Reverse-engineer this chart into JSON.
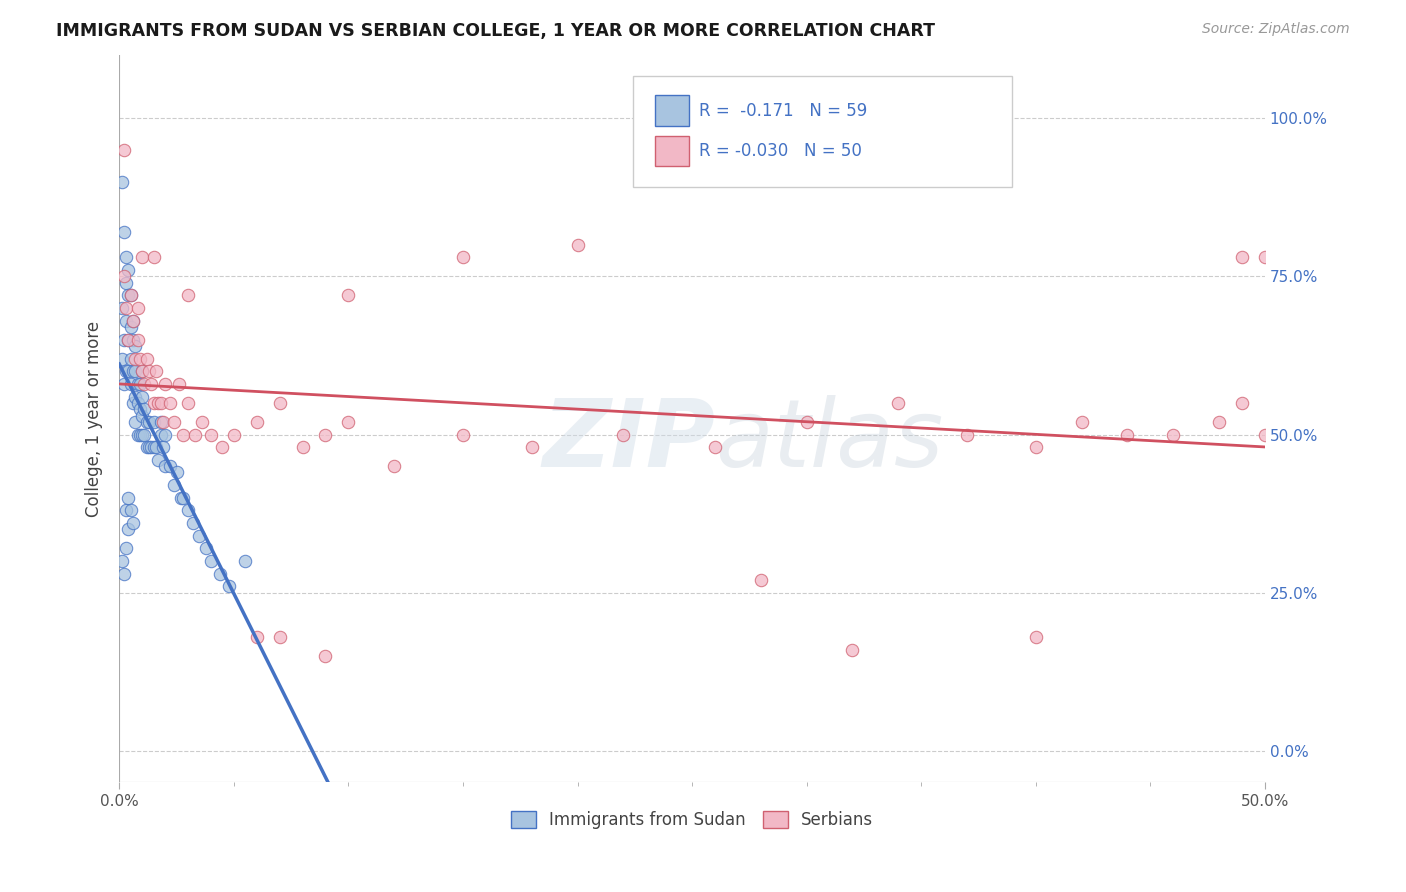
{
  "title": "IMMIGRANTS FROM SUDAN VS SERBIAN COLLEGE, 1 YEAR OR MORE CORRELATION CHART",
  "source": "Source: ZipAtlas.com",
  "ylabel": "College, 1 year or more",
  "xlim": [
    0.0,
    0.5
  ],
  "ylim": [
    -0.05,
    1.1
  ],
  "color_blue": "#a8c4e0",
  "color_pink": "#f2b8c6",
  "color_line_blue": "#4472c4",
  "color_line_pink": "#d05060",
  "color_text_blue": "#4472c4",
  "watermark": "ZIPatlas",
  "sudan_x": [
    0.001,
    0.001,
    0.002,
    0.002,
    0.003,
    0.003,
    0.003,
    0.004,
    0.004,
    0.004,
    0.005,
    0.005,
    0.005,
    0.006,
    0.006,
    0.006,
    0.007,
    0.007,
    0.007,
    0.007,
    0.008,
    0.008,
    0.008,
    0.009,
    0.009,
    0.009,
    0.01,
    0.01,
    0.01,
    0.01,
    0.011,
    0.011,
    0.012,
    0.012,
    0.013,
    0.013,
    0.014,
    0.015,
    0.015,
    0.016,
    0.017,
    0.018,
    0.018,
    0.019,
    0.02,
    0.02,
    0.022,
    0.024,
    0.025,
    0.027,
    0.028,
    0.03,
    0.032,
    0.035,
    0.038,
    0.04,
    0.044,
    0.048,
    0.055
  ],
  "sudan_y": [
    0.62,
    0.7,
    0.58,
    0.65,
    0.6,
    0.68,
    0.74,
    0.6,
    0.65,
    0.72,
    0.58,
    0.62,
    0.67,
    0.55,
    0.6,
    0.65,
    0.52,
    0.56,
    0.6,
    0.64,
    0.5,
    0.55,
    0.58,
    0.5,
    0.54,
    0.58,
    0.5,
    0.53,
    0.56,
    0.6,
    0.5,
    0.54,
    0.48,
    0.52,
    0.48,
    0.52,
    0.48,
    0.48,
    0.52,
    0.48,
    0.46,
    0.5,
    0.52,
    0.48,
    0.45,
    0.5,
    0.45,
    0.42,
    0.44,
    0.4,
    0.4,
    0.38,
    0.36,
    0.34,
    0.32,
    0.3,
    0.28,
    0.26,
    0.3
  ],
  "serbian_x": [
    0.002,
    0.003,
    0.004,
    0.005,
    0.006,
    0.007,
    0.008,
    0.008,
    0.009,
    0.01,
    0.011,
    0.012,
    0.013,
    0.014,
    0.015,
    0.016,
    0.017,
    0.018,
    0.019,
    0.02,
    0.022,
    0.024,
    0.026,
    0.028,
    0.03,
    0.033,
    0.036,
    0.04,
    0.045,
    0.05,
    0.06,
    0.07,
    0.08,
    0.09,
    0.1,
    0.12,
    0.15,
    0.18,
    0.22,
    0.26,
    0.3,
    0.34,
    0.37,
    0.4,
    0.42,
    0.44,
    0.46,
    0.48,
    0.49,
    0.5
  ],
  "serbian_y": [
    0.75,
    0.7,
    0.65,
    0.72,
    0.68,
    0.62,
    0.65,
    0.7,
    0.62,
    0.6,
    0.58,
    0.62,
    0.6,
    0.58,
    0.55,
    0.6,
    0.55,
    0.55,
    0.52,
    0.58,
    0.55,
    0.52,
    0.58,
    0.5,
    0.55,
    0.5,
    0.52,
    0.5,
    0.48,
    0.5,
    0.52,
    0.55,
    0.48,
    0.5,
    0.52,
    0.45,
    0.5,
    0.48,
    0.5,
    0.48,
    0.52,
    0.55,
    0.5,
    0.48,
    0.52,
    0.5,
    0.5,
    0.52,
    0.55,
    0.5
  ],
  "sudan_extra_points": [
    [
      0.001,
      0.9
    ],
    [
      0.002,
      0.82
    ],
    [
      0.003,
      0.78
    ],
    [
      0.004,
      0.76
    ],
    [
      0.005,
      0.72
    ],
    [
      0.006,
      0.68
    ],
    [
      0.001,
      0.3
    ],
    [
      0.002,
      0.28
    ],
    [
      0.003,
      0.32
    ],
    [
      0.004,
      0.35
    ],
    [
      0.003,
      0.38
    ],
    [
      0.004,
      0.4
    ],
    [
      0.005,
      0.38
    ],
    [
      0.006,
      0.36
    ]
  ],
  "serbian_extra_points": [
    [
      0.002,
      0.95
    ],
    [
      0.01,
      0.78
    ],
    [
      0.015,
      0.78
    ],
    [
      0.03,
      0.72
    ],
    [
      0.1,
      0.72
    ],
    [
      0.15,
      0.78
    ],
    [
      0.2,
      0.8
    ],
    [
      0.28,
      0.27
    ],
    [
      0.32,
      0.16
    ],
    [
      0.4,
      0.18
    ],
    [
      0.49,
      0.78
    ],
    [
      0.5,
      0.78
    ],
    [
      0.07,
      0.18
    ],
    [
      0.09,
      0.15
    ],
    [
      0.06,
      0.18
    ]
  ],
  "ytick_vals": [
    0.0,
    0.25,
    0.5,
    0.75,
    1.0
  ],
  "ytick_labels": [
    "0.0%",
    "25.0%",
    "50.0%",
    "75.0%",
    "100.0%"
  ]
}
